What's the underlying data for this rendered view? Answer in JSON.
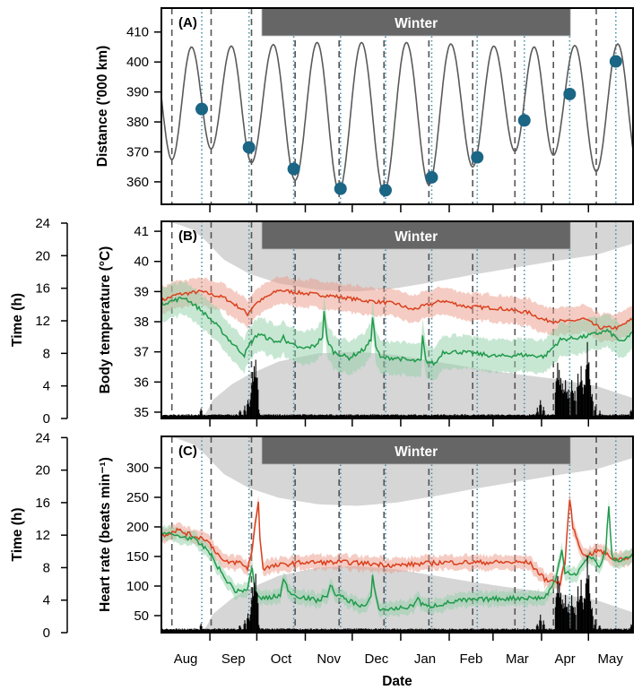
{
  "chart_data": {
    "type": "line",
    "x_unit": "days since 1 Aug",
    "xlim": [
      0,
      301.5
    ],
    "xlabel": "Date",
    "month_ticks": [
      31,
      61,
      92,
      122,
      153,
      184,
      212,
      243,
      273
    ],
    "month_labels": [
      "Aug",
      "Sep",
      "Oct",
      "Nov",
      "Dec",
      "Jan",
      "Feb",
      "Mar",
      "Apr",
      "May"
    ],
    "month_label_days": [
      15.5,
      46,
      76.5,
      107,
      137.5,
      168.5,
      198,
      227.5,
      258,
      287
    ],
    "perigee_days": [
      6.7,
      31.8,
      57.6,
      85.5,
      113.6,
      142.3,
      171,
      199,
      226,
      250.6,
      278
    ],
    "new_moon_days": [
      25.8,
      56,
      84.6,
      114.5,
      143.3,
      172.8,
      201.9,
      232,
      261,
      290.5
    ],
    "winter": {
      "label": "Winter",
      "start_day": 64.2,
      "end_day": 261.5
    },
    "night": {
      "sunset_h": [
        [
          0,
          24.3
        ],
        [
          10,
          23.9
        ],
        [
          20,
          23.2
        ],
        [
          28,
          21.9
        ],
        [
          40,
          19.5
        ],
        [
          56,
          17.8
        ],
        [
          75,
          16.6
        ],
        [
          100,
          15.8
        ],
        [
          125,
          15.6
        ],
        [
          150,
          16.0
        ],
        [
          175,
          16.8
        ],
        [
          200,
          17.7
        ],
        [
          225,
          18.5
        ],
        [
          250,
          19.3
        ],
        [
          278,
          20.1
        ],
        [
          301.5,
          21.5
        ]
      ],
      "sunrise_h": [
        [
          0,
          -0.3
        ],
        [
          24,
          -0.3
        ],
        [
          29,
          0.8
        ],
        [
          33,
          2.3
        ],
        [
          45,
          4.2
        ],
        [
          56,
          5.4
        ],
        [
          75,
          7.0
        ],
        [
          100,
          8.0
        ],
        [
          125,
          8.2
        ],
        [
          150,
          7.8
        ],
        [
          175,
          7.0
        ],
        [
          200,
          6.2
        ],
        [
          225,
          5.5
        ],
        [
          250,
          4.9
        ],
        [
          278,
          4.0
        ],
        [
          301.5,
          2.5
        ]
      ]
    },
    "activity_hours": {
      "baseline": 0.35,
      "peaks": [
        [
          25,
          1.2
        ],
        [
          50,
          1.0
        ],
        [
          53,
          1.5
        ],
        [
          55,
          2.4
        ],
        [
          56,
          1.4
        ],
        [
          57,
          3.2
        ],
        [
          58,
          5.7
        ],
        [
          59,
          6.3
        ],
        [
          60,
          7.1
        ],
        [
          61,
          5.0
        ],
        [
          62,
          1.0
        ],
        [
          240,
          1.2
        ],
        [
          242,
          2.2
        ],
        [
          244,
          1.4
        ],
        [
          252,
          4.5
        ],
        [
          253,
          6.9
        ],
        [
          254,
          6.0
        ],
        [
          255,
          5.0
        ],
        [
          256,
          4.2
        ],
        [
          257,
          3.5
        ],
        [
          258,
          4.6
        ],
        [
          259,
          3.2
        ],
        [
          260,
          3.6
        ],
        [
          262,
          4.7
        ],
        [
          263,
          3.0
        ],
        [
          264,
          3.3
        ],
        [
          266,
          5.6
        ],
        [
          267,
          4.0
        ],
        [
          268,
          6.5
        ],
        [
          269,
          3.8
        ],
        [
          270,
          4.2
        ],
        [
          271,
          6.0
        ],
        [
          272,
          9.4
        ],
        [
          273,
          7.0
        ],
        [
          274,
          4.0
        ],
        [
          275,
          3.0
        ],
        [
          277,
          1.5
        ],
        [
          280,
          1.0
        ],
        [
          290,
          0.6
        ],
        [
          300,
          1.1
        ]
      ]
    },
    "panels": [
      {
        "id": "A",
        "label": "(A)",
        "ylabel": "Distance ('000 km)",
        "ylim": [
          352.5,
          418
        ],
        "yticks": [
          "360",
          "370",
          "380",
          "390",
          "400",
          "410"
        ],
        "ytick_values": [
          360,
          370,
          380,
          390,
          400,
          410
        ],
        "distance_curve": {
          "perigee_min": [
            367.4,
            371.0,
            366.4,
            360.5,
            357.0,
            356.5,
            359.0,
            365.0,
            370.2,
            368.9,
            363.5
          ],
          "apogee_max": [
            405.0,
            405.0,
            405.3,
            405.8,
            406.5,
            406.5,
            406.5,
            406.0,
            405.3,
            405.0,
            405.5,
            406.0
          ],
          "color": "#5a5a5a"
        },
        "new_moon_distance": [
          384.3,
          371.5,
          364.3,
          357.7,
          357.2,
          361.5,
          368.2,
          380.5,
          389.3,
          400.2
        ],
        "dot_color": "#1b6585"
      },
      {
        "id": "B",
        "label": "(B)",
        "ylabel": "Body temperature (°C)",
        "ylim": [
          34.79,
          41.33
        ],
        "yticks": [
          "35",
          "36",
          "37",
          "38",
          "39",
          "40",
          "41"
        ],
        "ytick_values": [
          35,
          36,
          37,
          38,
          39,
          40,
          41
        ],
        "time_label": "Time (h)",
        "time_ticks": [
          "0",
          "4",
          "8",
          "12",
          "16",
          "20",
          "24"
        ],
        "time_tick_values": [
          0,
          4,
          8,
          12,
          16,
          20,
          24
        ],
        "time_lim": [
          0,
          24.22
        ],
        "series": [
          {
            "name": "upper",
            "color": "#d9411e",
            "band_color": "#ec9a88",
            "band": 0.45,
            "noise": 0.06,
            "points": [
              [
                0,
                38.7
              ],
              [
                10,
                38.9
              ],
              [
                25,
                39.0
              ],
              [
                40,
                38.8
              ],
              [
                52,
                38.4
              ],
              [
                55,
                38.25
              ],
              [
                60,
                38.6
              ],
              [
                75,
                39.05
              ],
              [
                90,
                38.95
              ],
              [
                110,
                38.85
              ],
              [
                130,
                38.7
              ],
              [
                150,
                38.6
              ],
              [
                160,
                38.4
              ],
              [
                180,
                38.7
              ],
              [
                195,
                38.5
              ],
              [
                215,
                38.45
              ],
              [
                235,
                38.3
              ],
              [
                245,
                38.05
              ],
              [
                260,
                38.0
              ],
              [
                270,
                38.1
              ],
              [
                280,
                37.8
              ],
              [
                292,
                37.8
              ],
              [
                301.5,
                38.1
              ]
            ]
          },
          {
            "name": "lower",
            "color": "#1f9a4a",
            "band_color": "#8fd0a8",
            "band": 0.55,
            "noise": 0.07,
            "points": [
              [
                0,
                38.6
              ],
              [
                15,
                38.8
              ],
              [
                25,
                38.4
              ],
              [
                35,
                37.9
              ],
              [
                45,
                37.3
              ],
              [
                53,
                36.9
              ],
              [
                57,
                37.3
              ],
              [
                62,
                37.6
              ],
              [
                70,
                37.4
              ],
              [
                76,
                37.3
              ],
              [
                78,
                37.6
              ],
              [
                80,
                37.3
              ],
              [
                90,
                37.1
              ],
              [
                98,
                37.2
              ],
              [
                103,
                37.5
              ],
              [
                104,
                38.3
              ],
              [
                106,
                37.4
              ],
              [
                110,
                37.0
              ],
              [
                120,
                36.8
              ],
              [
                130,
                37.1
              ],
              [
                134,
                37.4
              ],
              [
                135,
                38.2
              ],
              [
                137,
                37.2
              ],
              [
                140,
                36.8
              ],
              [
                150,
                36.8
              ],
              [
                160,
                36.7
              ],
              [
                166,
                36.7
              ],
              [
                167,
                37.5
              ],
              [
                169,
                36.7
              ],
              [
                175,
                36.6
              ],
              [
                180,
                37.0
              ],
              [
                190,
                37.0
              ],
              [
                200,
                36.95
              ],
              [
                215,
                36.85
              ],
              [
                230,
                36.9
              ],
              [
                245,
                36.85
              ],
              [
                255,
                37.4
              ],
              [
                270,
                37.5
              ],
              [
                285,
                37.7
              ],
              [
                295,
                37.3
              ],
              [
                301.5,
                37.7
              ]
            ]
          }
        ]
      },
      {
        "id": "C",
        "label": "(C)",
        "ylabel": "Heart rate (beats min⁻¹)",
        "ylim": [
          21.2,
          353
        ],
        "yticks": [
          "50",
          "100",
          "150",
          "200",
          "250",
          "300"
        ],
        "ytick_values": [
          50,
          100,
          150,
          200,
          250,
          300
        ],
        "time_label": "Time (h)",
        "time_ticks": [
          "0",
          "4",
          "8",
          "12",
          "16",
          "20",
          "24"
        ],
        "time_tick_values": [
          0,
          4,
          8,
          12,
          16,
          20,
          24
        ],
        "time_lim": [
          0,
          24.15
        ],
        "series": [
          {
            "name": "upper",
            "color": "#d9411e",
            "band_color": "#ec9a88",
            "band": 12,
            "noise": 4,
            "points": [
              [
                0,
                185
              ],
              [
                10,
                195
              ],
              [
                20,
                185
              ],
              [
                28,
                180
              ],
              [
                33,
                165
              ],
              [
                40,
                140
              ],
              [
                50,
                140
              ],
              [
                55,
                130
              ],
              [
                58,
                160
              ],
              [
                60,
                205
              ],
              [
                62,
                245
              ],
              [
                63,
                180
              ],
              [
                65,
                130
              ],
              [
                75,
                135
              ],
              [
                90,
                140
              ],
              [
                120,
                140
              ],
              [
                150,
                135
              ],
              [
                180,
                140
              ],
              [
                210,
                140
              ],
              [
                235,
                140
              ],
              [
                245,
                112
              ],
              [
                255,
                105
              ],
              [
                258,
                140
              ],
              [
                261,
                250
              ],
              [
                263,
                200
              ],
              [
                270,
                150
              ],
              [
                280,
                160
              ],
              [
                290,
                145
              ],
              [
                301.5,
                150
              ]
            ]
          },
          {
            "name": "lower",
            "color": "#1f9a4a",
            "band_color": "#8fd0a8",
            "band": 12,
            "noise": 4,
            "points": [
              [
                0,
                190
              ],
              [
                20,
                180
              ],
              [
                30,
                160
              ],
              [
                40,
                115
              ],
              [
                48,
                90
              ],
              [
                55,
                95
              ],
              [
                58,
                130
              ],
              [
                60,
                90
              ],
              [
                62,
                80
              ],
              [
                70,
                80
              ],
              [
                76,
                85
              ],
              [
                78,
                110
              ],
              [
                82,
                90
              ],
              [
                85,
                85
              ],
              [
                100,
                75
              ],
              [
                106,
                85
              ],
              [
                108,
                100
              ],
              [
                112,
                85
              ],
              [
                120,
                75
              ],
              [
                130,
                65
              ],
              [
                134,
                80
              ],
              [
                135,
                115
              ],
              [
                138,
                70
              ],
              [
                140,
                60
              ],
              [
                150,
                62
              ],
              [
                160,
                65
              ],
              [
                164,
                80
              ],
              [
                166,
                70
              ],
              [
                170,
                65
              ],
              [
                190,
                75
              ],
              [
                210,
                78
              ],
              [
                230,
                80
              ],
              [
                245,
                80
              ],
              [
                252,
                110
              ],
              [
                256,
                160
              ],
              [
                258,
                125
              ],
              [
                265,
                120
              ],
              [
                272,
                145
              ],
              [
                276,
                150
              ],
              [
                280,
                130
              ],
              [
                284,
                160
              ],
              [
                286,
                235
              ],
              [
                288,
                150
              ],
              [
                292,
                140
              ],
              [
                301.5,
                155
              ]
            ]
          }
        ]
      }
    ]
  }
}
